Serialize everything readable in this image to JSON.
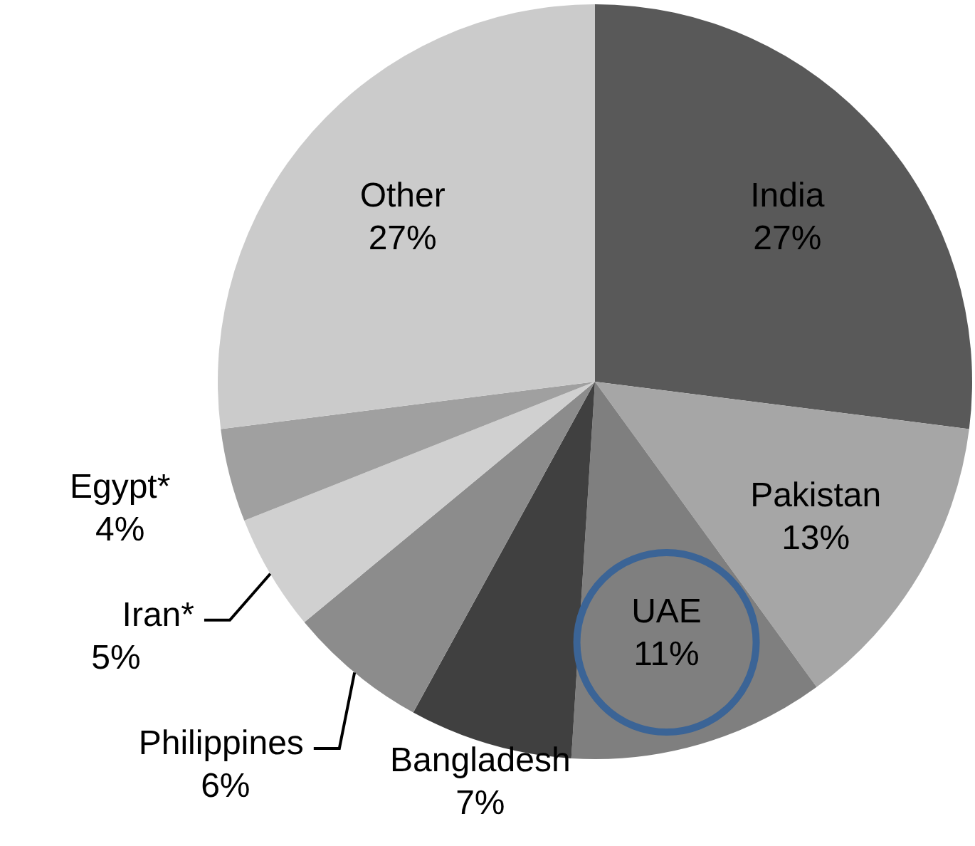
{
  "chart_data": {
    "type": "pie",
    "categories": [
      "India",
      "Pakistan",
      "UAE",
      "Bangladesh",
      "Philippines",
      "Iran*",
      "Egypt*",
      "Other"
    ],
    "values": [
      27,
      13,
      11,
      7,
      6,
      5,
      4,
      27
    ],
    "colors": [
      "#595959",
      "#a6a6a6",
      "#7f7f7f",
      "#404040",
      "#8c8c8c",
      "#d0d0d0",
      "#a0a0a0",
      "#cbcbcb"
    ],
    "value_labels": [
      "27%",
      "13%",
      "11%",
      "7%",
      "6%",
      "5%",
      "4%",
      "27%"
    ]
  }
}
